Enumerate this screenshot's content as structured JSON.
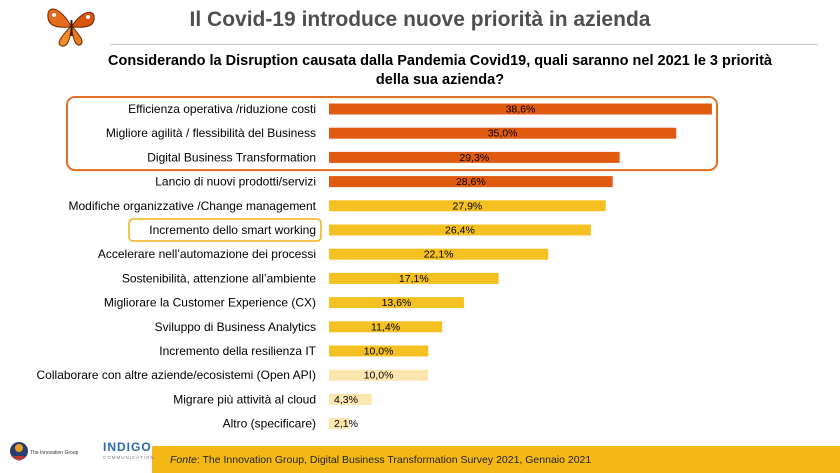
{
  "header": {
    "title": "Il Covid-19 introduce nuove priorità in azienda",
    "subtitle_line1": "Considerando la Disruption causata dalla Pandemia Covid19, quali saranno nel 2021 le 3 priorità",
    "subtitle_line2": "della sua azienda?"
  },
  "footer": {
    "source_label": "Fonte",
    "source_text": ": The Innovation Group, Digital Business Transformation Survey 2021, Gennaio 2021",
    "logo1_text": "The Innovation Group",
    "logo2_text": "INDIGO",
    "logo2_sub": "COMMUNICATION"
  },
  "colors": {
    "top_bar": "#e05a10",
    "mid_bar": "#f5c021",
    "low_bar": "#fbe6b0",
    "highlight_box": "#e07024",
    "smart_box": "#f2b21b"
  },
  "chart_data": {
    "type": "bar",
    "orientation": "horizontal",
    "categories": [
      "Efficienza operativa /riduzione costi",
      "Migliore agilità / flessibilità del Business",
      "Digital Business Transformation",
      "Lancio di nuovi prodotti/servizi",
      "Modifiche organizzative /Change management",
      "Incremento dello smart working",
      "Accelerare nell’automazione dei processi",
      "Sostenibilità, attenzione all’ambiente",
      "Migliorare la Customer Experience (CX)",
      "Sviluppo di Business Analytics",
      "Incremento della resilienza IT",
      "Collaborare con altre aziende/ecosistemi (Open API)",
      "Migrare più attività al cloud",
      "Altro (specificare)"
    ],
    "values": [
      38.6,
      35.0,
      29.3,
      28.6,
      27.9,
      26.4,
      22.1,
      17.1,
      13.6,
      11.4,
      10.0,
      10.0,
      4.3,
      2.1
    ],
    "labels": [
      "38,6%",
      "35,0%",
      "29,3%",
      "28,6%",
      "27,9%",
      "26,4%",
      "22,1%",
      "17,1%",
      "13,6%",
      "11,4%",
      "10,0%",
      "10,0%",
      "4,3%",
      "2,1%"
    ],
    "color_group": [
      "top",
      "top",
      "top",
      "top",
      "mid",
      "mid",
      "mid",
      "mid",
      "mid",
      "mid",
      "mid",
      "low",
      "low",
      "low"
    ],
    "xlim": [
      0,
      40
    ]
  }
}
